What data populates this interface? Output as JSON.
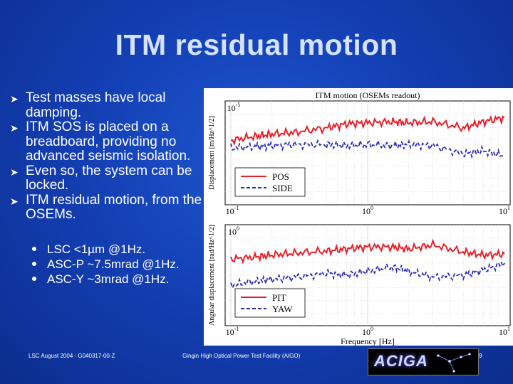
{
  "slide": {
    "title": "ITM residual motion",
    "bullets": [
      "Test masses have local damping.",
      "ITM SOS is placed on a breadboard, providing no advanced seismic isolation.",
      "Even so, the system can be locked.",
      "ITM residual motion, from the OSEMs."
    ],
    "sub_bullets": [
      "LSC <1µm @1Hz.",
      "ASC-P ~7.5mrad @1Hz.",
      "ASC-Y ~3mrad @1Hz."
    ],
    "footer_left": "LSC August 2004 - G040317-00-Z",
    "footer_center": "Gingin High Optical Power Test Facility (AIGO)",
    "page_number": "9",
    "logo_text": "ACIGA",
    "colors": {
      "title": "#d6e2ff",
      "background": "#1440b5"
    }
  },
  "chart_data": [
    {
      "type": "line",
      "title": "ITM motion (OSEMs readout)",
      "xlabel": "",
      "ylabel": "Displacement [m/Hz^1/2]",
      "xscale": "log",
      "xlim": [
        0.1,
        10
      ],
      "ylim_label_top": "10^-5",
      "ticks_x": [
        "10^-1",
        "10^0",
        "10^1"
      ],
      "series": [
        {
          "name": "POS",
          "style": "solid",
          "color": "#e8202a",
          "x": [
            0.1,
            0.15,
            0.2,
            0.3,
            0.5,
            0.7,
            1,
            1.5,
            2,
            3,
            5,
            7,
            10
          ],
          "values": [
            0.62,
            0.66,
            0.68,
            0.7,
            0.74,
            0.78,
            0.79,
            0.8,
            0.79,
            0.8,
            0.74,
            0.8,
            0.84
          ]
        },
        {
          "name": "SIDE",
          "style": "dashed",
          "color": "#2a2ab8",
          "x": [
            0.1,
            0.15,
            0.2,
            0.3,
            0.5,
            0.7,
            1,
            1.5,
            2,
            3,
            5,
            7,
            10
          ],
          "values": [
            0.55,
            0.56,
            0.57,
            0.58,
            0.58,
            0.57,
            0.58,
            0.57,
            0.58,
            0.57,
            0.49,
            0.52,
            0.47
          ]
        }
      ],
      "legend": "lower-left"
    },
    {
      "type": "line",
      "title": "",
      "xlabel": "Frequency [Hz]",
      "ylabel": "Angular displacement [rad/Hz^1/2]",
      "xscale": "log",
      "xlim": [
        0.1,
        10
      ],
      "ylim_label_top": "10^0",
      "ticks_x": [
        "10^-1",
        "10^0",
        "10^1"
      ],
      "series": [
        {
          "name": "PIT",
          "style": "solid",
          "color": "#e8202a",
          "x": [
            0.1,
            0.15,
            0.2,
            0.3,
            0.5,
            0.7,
            1,
            1.5,
            2,
            3,
            5,
            7,
            10
          ],
          "values": [
            0.66,
            0.68,
            0.7,
            0.72,
            0.74,
            0.76,
            0.78,
            0.78,
            0.76,
            0.8,
            0.73,
            0.7,
            0.71
          ]
        },
        {
          "name": "YAW",
          "style": "dashed",
          "color": "#2a2ab8",
          "x": [
            0.1,
            0.15,
            0.2,
            0.3,
            0.5,
            0.7,
            1,
            1.5,
            2,
            3,
            5,
            7,
            10
          ],
          "values": [
            0.4,
            0.44,
            0.46,
            0.48,
            0.52,
            0.5,
            0.54,
            0.58,
            0.54,
            0.48,
            0.5,
            0.55,
            0.62
          ]
        }
      ],
      "legend": "lower-left"
    }
  ]
}
